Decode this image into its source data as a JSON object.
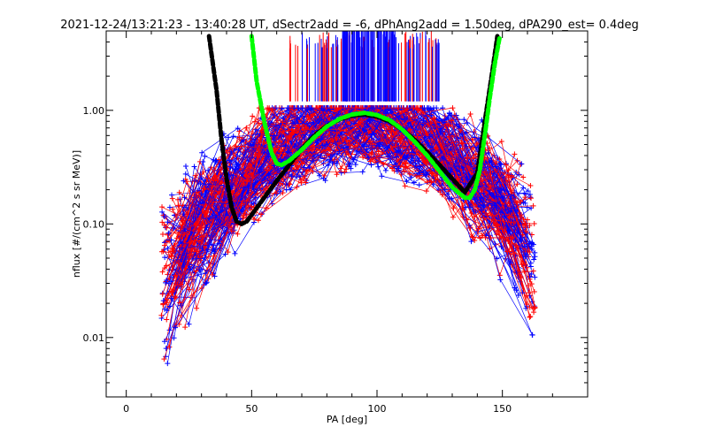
{
  "chart_data": {
    "type": "line",
    "title": "2021-12-24/13:21:23 - 13:40:28 UT, dSectr2add = -6, dPhAng2add = 1.50deg, dPA290_est=   0.4deg",
    "xlabel": "PA [deg]",
    "ylabel": "nflux [#/(cm^2 s sr MeV)]",
    "xlim": [
      -8,
      184
    ],
    "ylim": [
      0.003,
      5.0
    ],
    "yscale": "log",
    "xticks": [
      0,
      50,
      100,
      150
    ],
    "xtick_labels": [
      "0",
      "50",
      "100",
      "150"
    ],
    "yticks": [
      0.01,
      0.1,
      1.0
    ],
    "ytick_labels": [
      "0.01",
      "0.10",
      "1.00"
    ],
    "grid": false,
    "colors": {
      "red_series": "#ff0000",
      "blue_series": "#0000ff",
      "black_fit": "#000000",
      "green_fit": "#00ff00"
    },
    "series": [
      {
        "color": "black",
        "style": "dashed-thick",
        "x": [
          33,
          36,
          38,
          40,
          42,
          44,
          46,
          48,
          50,
          55,
          60,
          65,
          70,
          75,
          80,
          85,
          90,
          95,
          100,
          105,
          110,
          115,
          120,
          125,
          130,
          135,
          140,
          143,
          146,
          148
        ],
        "y": [
          4.5,
          1.5,
          0.55,
          0.25,
          0.14,
          0.105,
          0.1,
          0.105,
          0.12,
          0.17,
          0.24,
          0.33,
          0.46,
          0.6,
          0.73,
          0.83,
          0.9,
          0.92,
          0.88,
          0.8,
          0.68,
          0.55,
          0.43,
          0.33,
          0.25,
          0.19,
          0.28,
          0.8,
          2.2,
          4.5
        ]
      },
      {
        "color": "green",
        "style": "dashed-thick",
        "x": [
          50,
          52,
          55,
          58,
          60,
          62,
          65,
          70,
          75,
          80,
          85,
          90,
          95,
          100,
          105,
          110,
          115,
          120,
          125,
          130,
          135,
          137,
          139,
          141,
          143,
          145,
          147,
          149
        ],
        "y": [
          4.5,
          1.8,
          0.8,
          0.42,
          0.34,
          0.33,
          0.36,
          0.45,
          0.58,
          0.72,
          0.84,
          0.92,
          0.95,
          0.91,
          0.82,
          0.68,
          0.53,
          0.4,
          0.29,
          0.21,
          0.17,
          0.17,
          0.2,
          0.3,
          0.6,
          1.3,
          2.6,
          4.5
        ]
      }
    ]
  }
}
